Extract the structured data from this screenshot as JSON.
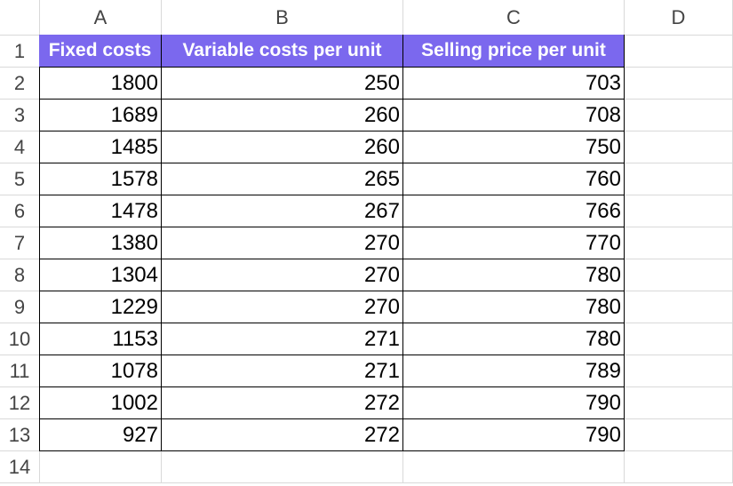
{
  "sheet": {
    "column_letters": [
      "A",
      "B",
      "C",
      "D"
    ],
    "row_numbers": [
      "1",
      "2",
      "3",
      "4",
      "5",
      "6",
      "7",
      "8",
      "9",
      "10",
      "11",
      "12",
      "13",
      "14"
    ],
    "table": {
      "header": [
        "Fixed costs",
        "Variable costs per unit",
        "Selling price per unit"
      ],
      "rows": [
        [
          1800,
          250,
          703
        ],
        [
          1689,
          260,
          708
        ],
        [
          1485,
          260,
          750
        ],
        [
          1578,
          265,
          760
        ],
        [
          1478,
          267,
          766
        ],
        [
          1380,
          270,
          770
        ],
        [
          1304,
          270,
          780
        ],
        [
          1229,
          270,
          780
        ],
        [
          1153,
          271,
          780
        ],
        [
          1078,
          271,
          789
        ],
        [
          1002,
          272,
          790
        ],
        [
          927,
          272,
          790
        ]
      ]
    }
  }
}
